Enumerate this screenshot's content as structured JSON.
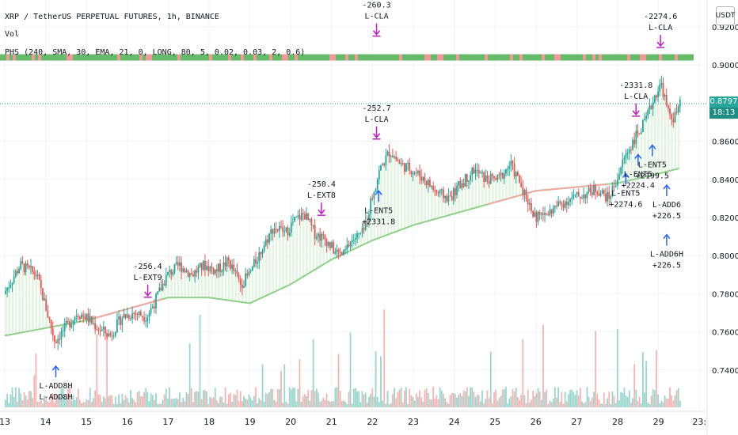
{
  "legend": {
    "line1": "XRP / TetherUS PERPETUAL FUTURES, 1h, BINANCE",
    "line2": "Vol",
    "line3": "PHS (240, SMA, 30, EMA, 21, 0, LONG, 80, 5, 0.02, 0.03, 2, 0.6)"
  },
  "currency": "USDT",
  "last_price": {
    "value": "0.8797",
    "countdown": "18:13"
  },
  "colors": {
    "up": "#26a69a",
    "down": "#ef5350",
    "ma": "#8fcf8a",
    "ma_red": "#f0a8a0",
    "long_arrow": "#2962ff",
    "exit_arrow": "#c020c0",
    "band_green": "#66bb6a",
    "band_red": "#ef9a9a"
  },
  "chart_data": {
    "type": "candlestick",
    "x_tick_labels": [
      "13",
      "14",
      "15",
      "16",
      "17",
      "18",
      "19",
      "20",
      "21",
      "22",
      "23",
      "24",
      "25",
      "26",
      "27",
      "28",
      "29",
      "23:"
    ],
    "y_tick_labels": [
      "0.9200",
      "0.9000",
      "0.8800",
      "0.8600",
      "0.8400",
      "0.8200",
      "0.8000",
      "0.7800",
      "0.7600",
      "0.7400"
    ],
    "ylim": [
      0.725,
      0.925
    ],
    "price_path": [
      [
        13.0,
        0.78
      ],
      [
        13.4,
        0.795
      ],
      [
        13.8,
        0.79
      ],
      [
        14.0,
        0.775
      ],
      [
        14.25,
        0.755
      ],
      [
        14.5,
        0.762
      ],
      [
        14.8,
        0.77
      ],
      [
        15.0,
        0.768
      ],
      [
        15.3,
        0.762
      ],
      [
        15.6,
        0.758
      ],
      [
        15.9,
        0.768
      ],
      [
        16.2,
        0.77
      ],
      [
        16.5,
        0.768
      ],
      [
        16.7,
        0.776
      ],
      [
        17.0,
        0.79
      ],
      [
        17.3,
        0.795
      ],
      [
        17.6,
        0.79
      ],
      [
        17.9,
        0.795
      ],
      [
        18.2,
        0.792
      ],
      [
        18.5,
        0.797
      ],
      [
        18.8,
        0.785
      ],
      [
        19.0,
        0.79
      ],
      [
        19.3,
        0.803
      ],
      [
        19.6,
        0.815
      ],
      [
        19.9,
        0.812
      ],
      [
        20.1,
        0.818
      ],
      [
        20.35,
        0.822
      ],
      [
        20.6,
        0.812
      ],
      [
        20.9,
        0.808
      ],
      [
        21.1,
        0.802
      ],
      [
        21.3,
        0.8
      ],
      [
        21.5,
        0.808
      ],
      [
        21.8,
        0.812
      ],
      [
        22.0,
        0.83
      ],
      [
        22.2,
        0.845
      ],
      [
        22.45,
        0.855
      ],
      [
        22.7,
        0.848
      ],
      [
        23.0,
        0.845
      ],
      [
        23.3,
        0.84
      ],
      [
        23.6,
        0.833
      ],
      [
        23.9,
        0.83
      ],
      [
        24.2,
        0.838
      ],
      [
        24.5,
        0.845
      ],
      [
        24.8,
        0.84
      ],
      [
        25.1,
        0.84
      ],
      [
        25.4,
        0.848
      ],
      [
        25.7,
        0.835
      ],
      [
        26.0,
        0.82
      ],
      [
        26.3,
        0.822
      ],
      [
        26.6,
        0.827
      ],
      [
        26.9,
        0.83
      ],
      [
        27.2,
        0.832
      ],
      [
        27.5,
        0.835
      ],
      [
        27.8,
        0.83
      ],
      [
        28.0,
        0.84
      ],
      [
        28.2,
        0.852
      ],
      [
        28.45,
        0.862
      ],
      [
        28.7,
        0.87
      ],
      [
        28.95,
        0.885
      ],
      [
        29.1,
        0.89
      ],
      [
        29.25,
        0.875
      ],
      [
        29.4,
        0.872
      ],
      [
        29.55,
        0.879
      ]
    ],
    "ma_path": [
      [
        13.0,
        0.758
      ],
      [
        14.0,
        0.762
      ],
      [
        15.0,
        0.766
      ],
      [
        16.0,
        0.772
      ],
      [
        17.0,
        0.778
      ],
      [
        18.0,
        0.778
      ],
      [
        19.0,
        0.775
      ],
      [
        20.0,
        0.785
      ],
      [
        21.0,
        0.798
      ],
      [
        22.0,
        0.808
      ],
      [
        23.0,
        0.816
      ],
      [
        24.0,
        0.822
      ],
      [
        25.0,
        0.828
      ],
      [
        26.0,
        0.834
      ],
      [
        27.0,
        0.836
      ],
      [
        28.0,
        0.838
      ],
      [
        29.0,
        0.843
      ],
      [
        29.55,
        0.846
      ]
    ],
    "ma_red_segments": [
      [
        15.2,
        16.9
      ],
      [
        24.8,
        27.8
      ]
    ],
    "band_price": 0.904,
    "current_price_line": 0.8797,
    "signals": [
      {
        "kind": "long",
        "x": 14.25,
        "price": 0.742,
        "labels": [
          "L-ADD8H",
          "L-ADD8H"
        ]
      },
      {
        "kind": "exit",
        "x": 16.5,
        "price": 0.779,
        "labels": [
          "-256.4",
          "L-EXT9"
        ]
      },
      {
        "kind": "exit",
        "x": 20.75,
        "price": 0.822,
        "labels": [
          "-250.4",
          "L-EXT8"
        ]
      },
      {
        "kind": "long",
        "x": 22.15,
        "price": 0.834,
        "labels": [
          "L-ENT5",
          "+2331.8"
        ]
      },
      {
        "kind": "exit",
        "x": 22.1,
        "price": 0.862,
        "labels": [
          "-252.7",
          "L-CLA"
        ]
      },
      {
        "kind": "exit",
        "x": 22.1,
        "price": 0.916,
        "labels": [
          "-260.3",
          "L-CLA"
        ]
      },
      {
        "kind": "long",
        "x": 28.2,
        "price": 0.843,
        "labels": [
          "L-ENT5",
          "+2274.6"
        ]
      },
      {
        "kind": "long",
        "x": 28.5,
        "price": 0.853,
        "labels": [
          "L-ENT5",
          "+2224.4"
        ]
      },
      {
        "kind": "long",
        "x": 28.85,
        "price": 0.858,
        "labels": [
          "L-ENT5",
          "+2199.5"
        ]
      },
      {
        "kind": "exit",
        "x": 28.45,
        "price": 0.874,
        "labels": [
          "-2331.8",
          "L-CLA"
        ]
      },
      {
        "kind": "exit",
        "x": 29.05,
        "price": 0.91,
        "labels": [
          "-2274.6",
          "L-CLA"
        ]
      },
      {
        "kind": "long",
        "x": 29.2,
        "price": 0.837,
        "labels": [
          "L-ADD6",
          "+226.5"
        ]
      },
      {
        "kind": "long",
        "x": 29.2,
        "price": 0.811,
        "labels": [
          "L-ADD6H",
          "+226.5"
        ]
      }
    ]
  }
}
